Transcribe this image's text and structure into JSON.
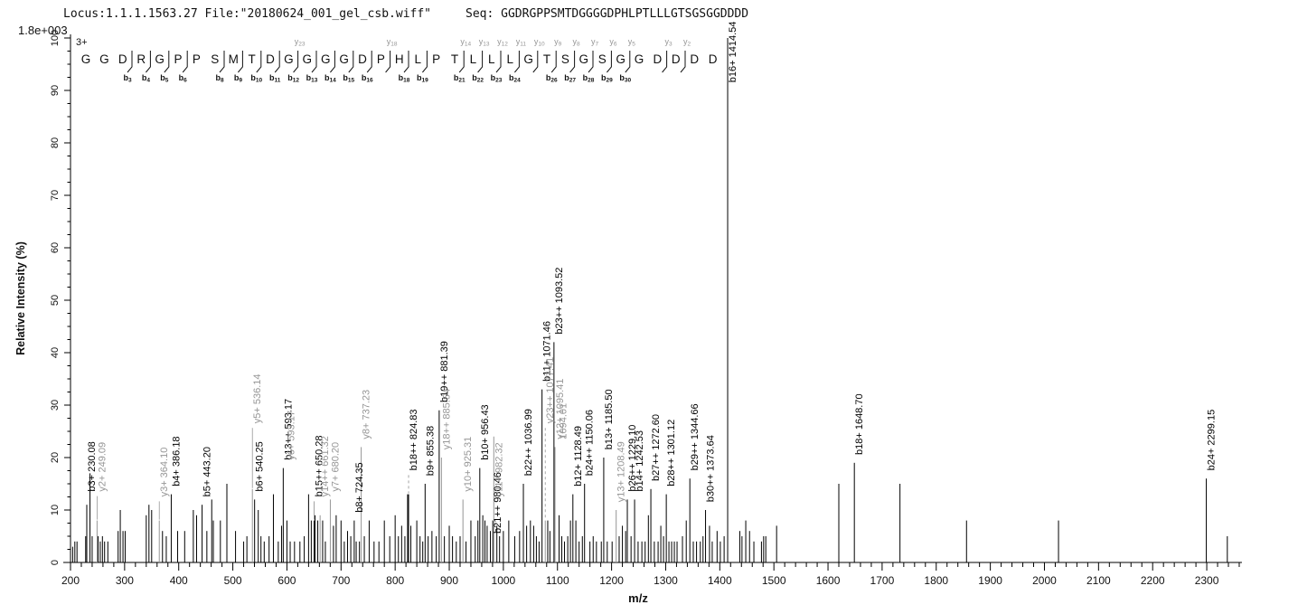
{
  "header": {
    "locus": "Locus:1.1.1.1563.27",
    "file": "File:\"20180624_001_gel_csb.wiff\"",
    "seq_label": "Seq:",
    "sequence": "GGDRGPPSMTDGGGGDPHLPTLLLGTSGSGGDDDD"
  },
  "top_left_scale": "1.8e+003",
  "precursor_charge": "3+",
  "axes": {
    "y_label": "Relative  Intensity (%)",
    "x_label": "m/z",
    "y_ticks": [
      0,
      10,
      20,
      30,
      40,
      50,
      60,
      70,
      80,
      90,
      100
    ],
    "y_minor_step": 2.5,
    "x_ticks": [
      200,
      300,
      400,
      500,
      600,
      700,
      800,
      900,
      1000,
      1100,
      1200,
      1300,
      1400,
      1500,
      1600,
      1700,
      1800,
      1900,
      2000,
      2100,
      2200,
      2300
    ],
    "x_minor_step": 20,
    "x_min": 200,
    "x_max": 2365,
    "y_max": 100
  },
  "colors": {
    "b_ion": "#000000",
    "y_ion": "#969696",
    "axis": "#000000"
  },
  "sequence_strip": {
    "residues": [
      "G",
      "G",
      "D",
      "R",
      "G",
      "P",
      "P",
      "S",
      "M",
      "T",
      "D",
      "G",
      "G",
      "G",
      "G",
      "D",
      "P",
      "H",
      "L",
      "P",
      "T",
      "L",
      "L",
      "L",
      "G",
      "T",
      "S",
      "G",
      "S",
      "G",
      "G",
      "D",
      "D",
      "D",
      "D"
    ],
    "cuts": [
      {
        "after": 3,
        "b": "b3"
      },
      {
        "after": 4,
        "b": "b4"
      },
      {
        "after": 5,
        "b": "b5"
      },
      {
        "after": 6,
        "b": "b6"
      },
      {
        "after": 8,
        "b": "b8"
      },
      {
        "after": 9,
        "b": "b9"
      },
      {
        "after": 10,
        "b": "b10"
      },
      {
        "after": 11,
        "b": "b11"
      },
      {
        "after": 12,
        "b": "b12",
        "y": "y23"
      },
      {
        "after": 13,
        "b": "b13"
      },
      {
        "after": 14,
        "b": "b14"
      },
      {
        "after": 15,
        "b": "b15"
      },
      {
        "after": 16,
        "b": "b16"
      },
      {
        "after": 17,
        "y": "y18"
      },
      {
        "after": 18,
        "b": "b18"
      },
      {
        "after": 19,
        "b": "b19"
      },
      {
        "after": 21,
        "b": "b21",
        "y": "y14"
      },
      {
        "after": 22,
        "b": "b22",
        "y": "y13"
      },
      {
        "after": 23,
        "b": "b23",
        "y": "y12"
      },
      {
        "after": 24,
        "b": "b24",
        "y": "y11"
      },
      {
        "after": 25,
        "y": "y10"
      },
      {
        "after": 26,
        "b": "b26",
        "y": "y9"
      },
      {
        "after": 27,
        "b": "b27",
        "y": "y8"
      },
      {
        "after": 28,
        "b": "b28",
        "y": "y7"
      },
      {
        "after": 29,
        "b": "b29",
        "y": "y6"
      },
      {
        "after": 30,
        "b": "b30",
        "y": "y5"
      },
      {
        "after": 32,
        "y": "y3"
      },
      {
        "after": 33,
        "y": "y2"
      }
    ]
  },
  "chart_data": {
    "type": "ms2-spectrum-bar",
    "title": "",
    "xlabel": "m/z",
    "ylabel": "Relative  Intensity (%)",
    "xlim": [
      200,
      2365
    ],
    "ylim": [
      0,
      100
    ],
    "peak_format": "[mz, intensity_pct, ion_type(b|y|bd|yd|ylab|u), label, label_bottom_pct]",
    "peaks": [
      [
        230.08,
        11,
        "b",
        "b3+ 230.08",
        13
      ],
      [
        249.09,
        8,
        "y",
        "y2+ 249.09",
        13
      ],
      [
        364.1,
        8,
        "y",
        "y3+ 364.10",
        12
      ],
      [
        386.18,
        13,
        "b",
        "b4+ 386.18",
        14
      ],
      [
        443.2,
        11,
        "b",
        "b5+ 443.20",
        12
      ],
      [
        536.14,
        14,
        "y",
        "y5+ 536.14",
        26
      ],
      [
        540.25,
        12,
        "b",
        "b6+ 540.25",
        13
      ],
      [
        593.17,
        18,
        "b",
        "b13++ 593.17",
        19
      ],
      [
        598.5,
        18,
        "ylab",
        "y6+ 593.17",
        19
      ],
      [
        650.28,
        8,
        "b",
        "b15++ 650.28",
        12
      ],
      [
        661.32,
        9,
        "y",
        "y14++ 661.32",
        12
      ],
      [
        680.2,
        12,
        "y",
        "y7+ 680.20",
        13
      ],
      [
        724.35,
        8,
        "b",
        "b8+ 724.35",
        9
      ],
      [
        737.23,
        22,
        "y",
        "y8+ 737.23",
        23
      ],
      [
        824.83,
        13,
        "bd",
        "b18++ 824.83",
        17
      ],
      [
        855.38,
        15,
        "b",
        "b9+ 855.38",
        16
      ],
      [
        881.39,
        29,
        "b",
        "b19++ 881.39",
        30
      ],
      [
        885.54,
        20,
        "y",
        "y18++ 885.54",
        21
      ],
      [
        925.31,
        12,
        "y",
        "y10+ 925.31",
        13
      ],
      [
        956.43,
        18,
        "b",
        "b10+ 956.43",
        19
      ],
      [
        980.46,
        8,
        "b",
        "b21++ 980.46",
        5
      ],
      [
        982.32,
        24,
        "y",
        "y11+ 982.32",
        12
      ],
      [
        1036.99,
        15,
        "b",
        "b22++ 1036.99",
        16
      ],
      [
        1071.46,
        33,
        "b",
        "b11+ 1071.46",
        34
      ],
      [
        1077.41,
        8,
        "yd",
        "y23++ 1077.41",
        26
      ],
      [
        1093.52,
        42,
        "b",
        "b23++ 1093.52",
        43
      ],
      [
        1095.41,
        22,
        "y",
        "y12+ 1095.41",
        23
      ],
      [
        1101.5,
        22,
        "ylab",
        "1094.01",
        23
      ],
      [
        1128.49,
        13,
        "b",
        "b12+ 1128.49",
        14
      ],
      [
        1150.06,
        15,
        "b",
        "b24++ 1150.06",
        16
      ],
      [
        1185.5,
        20,
        "b",
        "b13+ 1185.50",
        21
      ],
      [
        1208.49,
        10,
        "y",
        "y13+ 1208.49",
        11
      ],
      [
        1229.1,
        12,
        "b",
        "b26++ 1229.10",
        13
      ],
      [
        1242.53,
        12,
        "b",
        "b14+ 1242.53",
        13
      ],
      [
        1272.6,
        14,
        "b",
        "b27++ 1272.60",
        15
      ],
      [
        1301.12,
        13,
        "b",
        "b28++ 1301.12",
        14
      ],
      [
        1344.66,
        16,
        "b",
        "b29++ 1344.66",
        17
      ],
      [
        1373.64,
        10,
        "b",
        "b30++ 1373.64",
        11
      ],
      [
        1414.54,
        100,
        "b",
        "b16+ 1414.54",
        91
      ],
      [
        1648.7,
        19,
        "b",
        "b18+ 1648.70",
        20
      ],
      [
        2299.15,
        16,
        "b",
        "b24+ 2299.15",
        17
      ],
      [
        204,
        3
      ],
      [
        208,
        4
      ],
      [
        212,
        4
      ],
      [
        228,
        5
      ],
      [
        236,
        17
      ],
      [
        240,
        5
      ],
      [
        251,
        5
      ],
      [
        255,
        4
      ],
      [
        259,
        5
      ],
      [
        263,
        4
      ],
      [
        269,
        4
      ],
      [
        288,
        6
      ],
      [
        292,
        10
      ],
      [
        297,
        6
      ],
      [
        301,
        6
      ],
      [
        340,
        9
      ],
      [
        345,
        11
      ],
      [
        350,
        10
      ],
      [
        370,
        6
      ],
      [
        377,
        5
      ],
      [
        398,
        6
      ],
      [
        411,
        6
      ],
      [
        427,
        10
      ],
      [
        433,
        9
      ],
      [
        452,
        6
      ],
      [
        461,
        12
      ],
      [
        464,
        8
      ],
      [
        477,
        8
      ],
      [
        489,
        15
      ],
      [
        505,
        6
      ],
      [
        520,
        4
      ],
      [
        526,
        5
      ],
      [
        547,
        10
      ],
      [
        552,
        5
      ],
      [
        558,
        4
      ],
      [
        567,
        5
      ],
      [
        575,
        13
      ],
      [
        584,
        4
      ],
      [
        590,
        7
      ],
      [
        600,
        8
      ],
      [
        606,
        4
      ],
      [
        614,
        4
      ],
      [
        624,
        4
      ],
      [
        632,
        5
      ],
      [
        640,
        13
      ],
      [
        645,
        8
      ],
      [
        652,
        9
      ],
      [
        657,
        8
      ],
      [
        666,
        8
      ],
      [
        671,
        4
      ],
      [
        686,
        7
      ],
      [
        691,
        9
      ],
      [
        700,
        8
      ],
      [
        706,
        4
      ],
      [
        712,
        6
      ],
      [
        718,
        5
      ],
      [
        728,
        4
      ],
      [
        734,
        4
      ],
      [
        743,
        5
      ],
      [
        752,
        8
      ],
      [
        761,
        4
      ],
      [
        770,
        4
      ],
      [
        780,
        8
      ],
      [
        790,
        5
      ],
      [
        800,
        9
      ],
      [
        806,
        5
      ],
      [
        812,
        7
      ],
      [
        818,
        5
      ],
      [
        823,
        13
      ],
      [
        829,
        7
      ],
      [
        840,
        8
      ],
      [
        846,
        5
      ],
      [
        851,
        4
      ],
      [
        861,
        5
      ],
      [
        868,
        6
      ],
      [
        876,
        5
      ],
      [
        891,
        5
      ],
      [
        900,
        7
      ],
      [
        906,
        5
      ],
      [
        913,
        4
      ],
      [
        920,
        5
      ],
      [
        931,
        4
      ],
      [
        940,
        8
      ],
      [
        948,
        5
      ],
      [
        953,
        8
      ],
      [
        962,
        9
      ],
      [
        966,
        8
      ],
      [
        970,
        7
      ],
      [
        976,
        6
      ],
      [
        988,
        7
      ],
      [
        993,
        5
      ],
      [
        1000,
        6
      ],
      [
        1010,
        8
      ],
      [
        1021,
        5
      ],
      [
        1030,
        6
      ],
      [
        1043,
        7
      ],
      [
        1050,
        8
      ],
      [
        1056,
        7
      ],
      [
        1061,
        5
      ],
      [
        1066,
        4
      ],
      [
        1082,
        8
      ],
      [
        1086,
        6
      ],
      [
        1103,
        9
      ],
      [
        1108,
        5
      ],
      [
        1113,
        4
      ],
      [
        1119,
        5
      ],
      [
        1124,
        8
      ],
      [
        1134,
        8
      ],
      [
        1140,
        4
      ],
      [
        1146,
        5
      ],
      [
        1160,
        4
      ],
      [
        1166,
        5
      ],
      [
        1172,
        4
      ],
      [
        1181,
        4
      ],
      [
        1192,
        4
      ],
      [
        1201,
        4
      ],
      [
        1214,
        5
      ],
      [
        1220,
        7
      ],
      [
        1226,
        6
      ],
      [
        1236,
        5
      ],
      [
        1249,
        4
      ],
      [
        1256,
        4
      ],
      [
        1262,
        4
      ],
      [
        1268,
        9
      ],
      [
        1279,
        4
      ],
      [
        1286,
        4
      ],
      [
        1291,
        7
      ],
      [
        1296,
        5
      ],
      [
        1306,
        4
      ],
      [
        1311,
        4
      ],
      [
        1316,
        4
      ],
      [
        1321,
        4
      ],
      [
        1331,
        5
      ],
      [
        1338,
        8
      ],
      [
        1351,
        4
      ],
      [
        1357,
        4
      ],
      [
        1364,
        4
      ],
      [
        1369,
        5
      ],
      [
        1381,
        7
      ],
      [
        1386,
        4
      ],
      [
        1395,
        6
      ],
      [
        1401,
        4
      ],
      [
        1408,
        5
      ],
      [
        1437,
        6
      ],
      [
        1441,
        5
      ],
      [
        1448,
        8
      ],
      [
        1455,
        6
      ],
      [
        1463,
        4
      ],
      [
        1477,
        4
      ],
      [
        1481,
        5
      ],
      [
        1485,
        5
      ],
      [
        1505,
        7
      ],
      [
        1620,
        15
      ],
      [
        1733,
        15
      ],
      [
        1856,
        8
      ],
      [
        2026,
        8
      ],
      [
        2338,
        5
      ]
    ]
  }
}
